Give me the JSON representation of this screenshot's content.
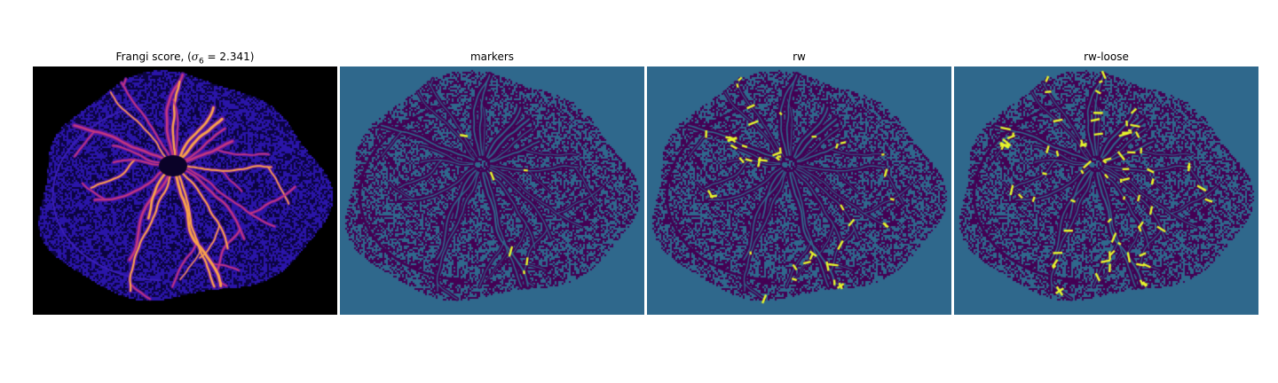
{
  "figure": {
    "panels": [
      {
        "id": "frangi",
        "title_prefix": "Frangi score, (",
        "title_sigma": "σ",
        "title_subscript": "6",
        "title_suffix": " = 2.341)",
        "colormap": "plasma",
        "background": "#000000"
      },
      {
        "id": "markers",
        "title": "markers",
        "colormap": "viridis",
        "background": "#2f688c"
      },
      {
        "id": "rw",
        "title": "rw",
        "colormap": "viridis",
        "background": "#2f688c"
      },
      {
        "id": "rw-loose",
        "title": "rw-loose",
        "colormap": "viridis",
        "background": "#2f688c"
      }
    ]
  },
  "colors": {
    "dark_purple": "#440154",
    "teal_blue": "#2f688c",
    "yellow": "#e8f72a",
    "frangi_blue": "#2a15a8",
    "frangi_magenta": "#c4367e",
    "frangi_orange": "#f8a04a",
    "frangi_black": "#000000"
  }
}
